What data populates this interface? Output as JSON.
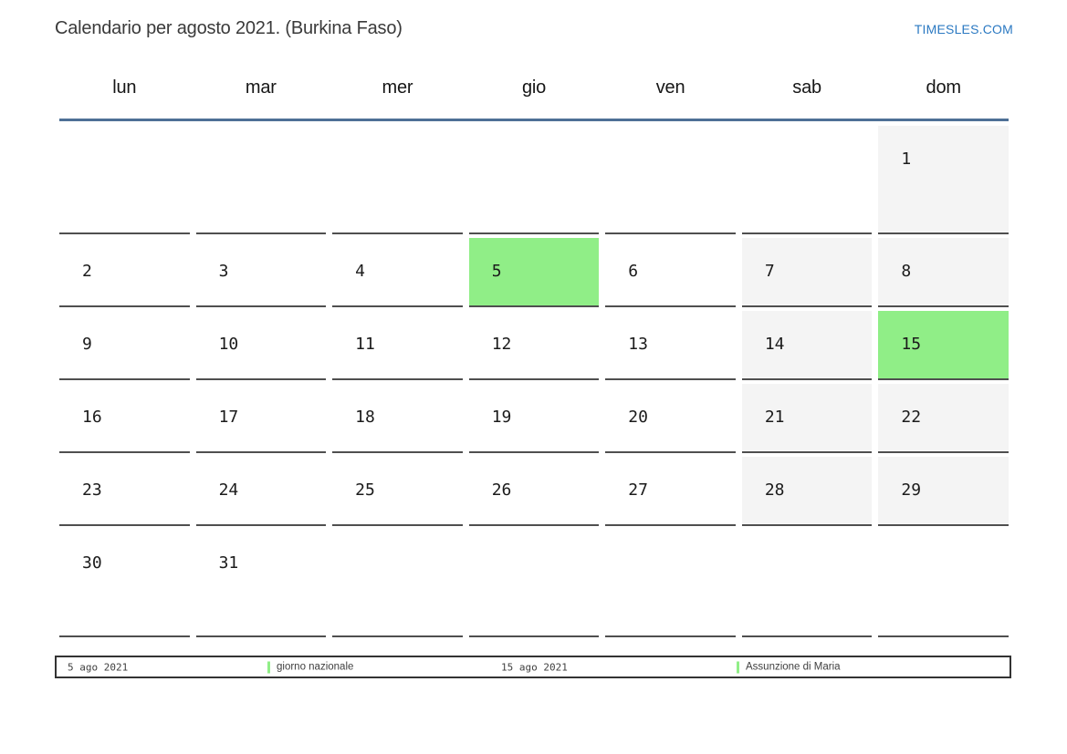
{
  "page": {
    "title": "Calendario per agosto 2021. (Burkina Faso)",
    "site_link": "TIMESLES.COM"
  },
  "colors": {
    "green": "#90ee87",
    "weekend": "#f4f4f4",
    "cellborder": "#4f4f4f",
    "headerline": "#4e7096",
    "link": "#2b79c2",
    "ink": "#1b1b1b"
  },
  "calendar": {
    "month": "agosto 2021",
    "day_headers": [
      "lun",
      "mar",
      "mer",
      "gio",
      "ven",
      "sab",
      "dom"
    ],
    "weeks": [
      [
        {
          "day": ""
        },
        {
          "day": ""
        },
        {
          "day": ""
        },
        {
          "day": ""
        },
        {
          "day": ""
        },
        {
          "day": ""
        },
        {
          "day": "1",
          "style": "weekend"
        }
      ],
      [
        {
          "day": "2"
        },
        {
          "day": "3"
        },
        {
          "day": "4"
        },
        {
          "day": "5",
          "style": "holiday"
        },
        {
          "day": "6"
        },
        {
          "day": "7",
          "style": "weekend"
        },
        {
          "day": "8",
          "style": "weekend"
        }
      ],
      [
        {
          "day": "9"
        },
        {
          "day": "10"
        },
        {
          "day": "11"
        },
        {
          "day": "12"
        },
        {
          "day": "13"
        },
        {
          "day": "14",
          "style": "weekend"
        },
        {
          "day": "15",
          "style": "holiday"
        }
      ],
      [
        {
          "day": "16"
        },
        {
          "day": "17"
        },
        {
          "day": "18"
        },
        {
          "day": "19"
        },
        {
          "day": "20"
        },
        {
          "day": "21",
          "style": "weekend"
        },
        {
          "day": "22",
          "style": "weekend"
        }
      ],
      [
        {
          "day": "23"
        },
        {
          "day": "24"
        },
        {
          "day": "25"
        },
        {
          "day": "26"
        },
        {
          "day": "27"
        },
        {
          "day": "28",
          "style": "weekend"
        },
        {
          "day": "29",
          "style": "weekend"
        }
      ],
      [
        {
          "day": "30"
        },
        {
          "day": "31"
        },
        {
          "day": ""
        },
        {
          "day": ""
        },
        {
          "day": ""
        },
        {
          "day": ""
        },
        {
          "day": ""
        }
      ]
    ]
  },
  "legend": {
    "entries": [
      {
        "date": "5 ago 2021",
        "label": "giorno nazionale"
      },
      {
        "date": "15 ago 2021",
        "label": "Assunzione di Maria"
      }
    ]
  }
}
